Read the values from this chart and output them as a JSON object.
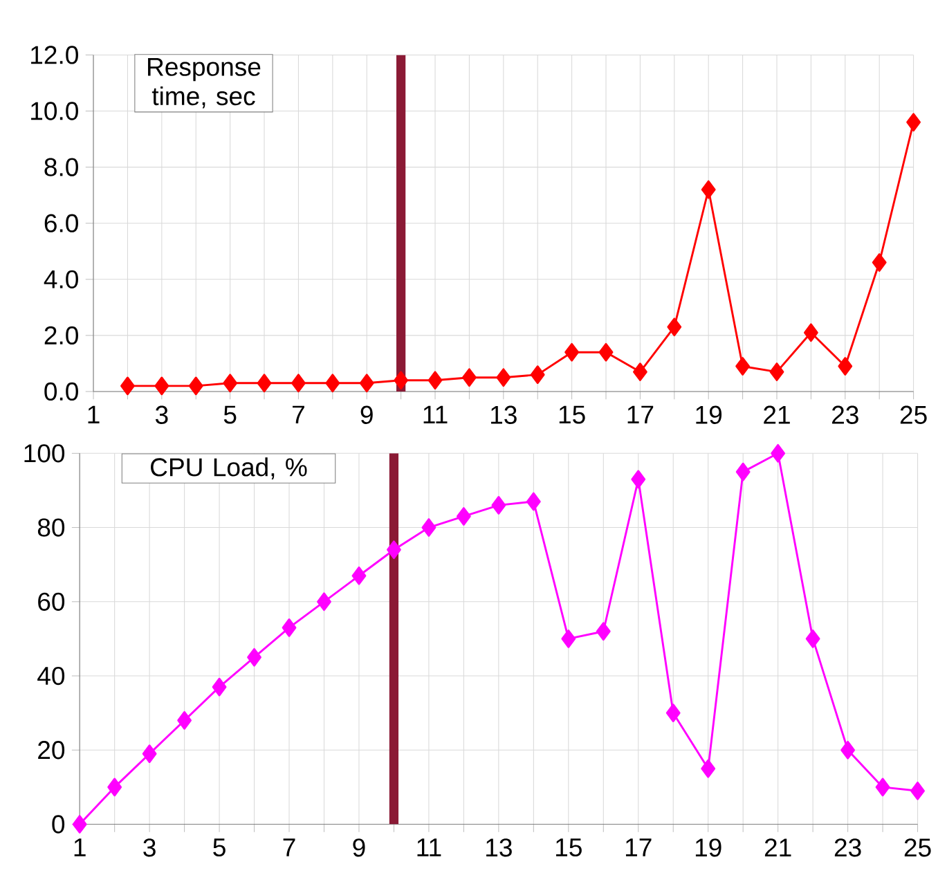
{
  "chart_data": [
    {
      "type": "line",
      "title": "Response time, sec",
      "x": [
        2,
        3,
        4,
        5,
        6,
        7,
        8,
        9,
        10,
        11,
        12,
        13,
        14,
        15,
        16,
        17,
        18,
        19,
        20,
        21,
        22,
        23,
        24,
        25
      ],
      "series": [
        {
          "color": "#ff0000",
          "values": [
            0.2,
            0.2,
            0.2,
            0.3,
            0.3,
            0.3,
            0.3,
            0.3,
            0.4,
            0.4,
            0.5,
            0.5,
            0.6,
            1.4,
            1.4,
            0.7,
            2.3,
            7.2,
            0.9,
            0.7,
            2.1,
            0.9,
            4.6,
            9.6
          ]
        }
      ],
      "xlim": [
        1,
        25
      ],
      "xticks": [
        1,
        {
          "value": 2,
          "label": null
        },
        3,
        {
          "value": 4,
          "label": null
        },
        5,
        {
          "value": 6,
          "label": null
        },
        7,
        {
          "value": 8,
          "label": null
        },
        9,
        {
          "value": 10,
          "label": null
        },
        11,
        {
          "value": 12,
          "label": null
        },
        13,
        {
          "value": 14,
          "label": null
        },
        15,
        {
          "value": 16,
          "label": null
        },
        17,
        {
          "value": 18,
          "label": null
        },
        19,
        {
          "value": 20,
          "label": null
        },
        21,
        {
          "value": 22,
          "label": null
        },
        23,
        {
          "value": 24,
          "label": null
        },
        25
      ],
      "ylim": [
        0,
        12
      ],
      "yticks": [
        {
          "value": 0,
          "label": "0.0"
        },
        {
          "value": 2,
          "label": "2.0"
        },
        {
          "value": 4,
          "label": "4.0"
        },
        {
          "value": 6,
          "label": "6.0"
        },
        {
          "value": 8,
          "label": "8.0"
        },
        {
          "value": 10,
          "label": "10.0"
        },
        {
          "value": 12,
          "label": "12.0"
        }
      ],
      "ref_lines": [
        {
          "axis": "x",
          "value": 10,
          "color": "#8b1a35"
        }
      ],
      "grid": true,
      "marker": "diamond",
      "line_style": "solid"
    },
    {
      "type": "line",
      "title": "CPU Load, %",
      "x": [
        1,
        2,
        3,
        4,
        5,
        6,
        7,
        8,
        9,
        10,
        11,
        12,
        13,
        14,
        15,
        16,
        17,
        18,
        19,
        20,
        21,
        22,
        23,
        24,
        25
      ],
      "series": [
        {
          "color": "#ff00ff",
          "values": [
            0,
            10,
            19,
            28,
            37,
            45,
            53,
            60,
            67,
            74,
            80,
            83,
            86,
            87,
            50,
            52,
            93,
            30,
            15,
            95,
            100,
            50,
            20,
            10,
            9
          ]
        }
      ],
      "xlim": [
        1,
        25
      ],
      "xticks": [
        1,
        {
          "value": 2,
          "label": null
        },
        3,
        {
          "value": 4,
          "label": null
        },
        5,
        {
          "value": 6,
          "label": null
        },
        7,
        {
          "value": 8,
          "label": null
        },
        9,
        {
          "value": 10,
          "label": null
        },
        11,
        {
          "value": 12,
          "label": null
        },
        13,
        {
          "value": 14,
          "label": null
        },
        15,
        {
          "value": 16,
          "label": null
        },
        17,
        {
          "value": 18,
          "label": null
        },
        19,
        {
          "value": 20,
          "label": null
        },
        21,
        {
          "value": 22,
          "label": null
        },
        23,
        {
          "value": 24,
          "label": null
        },
        25
      ],
      "ylim": [
        0,
        100
      ],
      "yticks": [
        0,
        20,
        40,
        60,
        80,
        100
      ],
      "ref_lines": [
        {
          "axis": "x",
          "value": 10,
          "color": "#8b1a35"
        }
      ],
      "grid": true,
      "marker": "diamond",
      "line_style": "solid"
    }
  ]
}
